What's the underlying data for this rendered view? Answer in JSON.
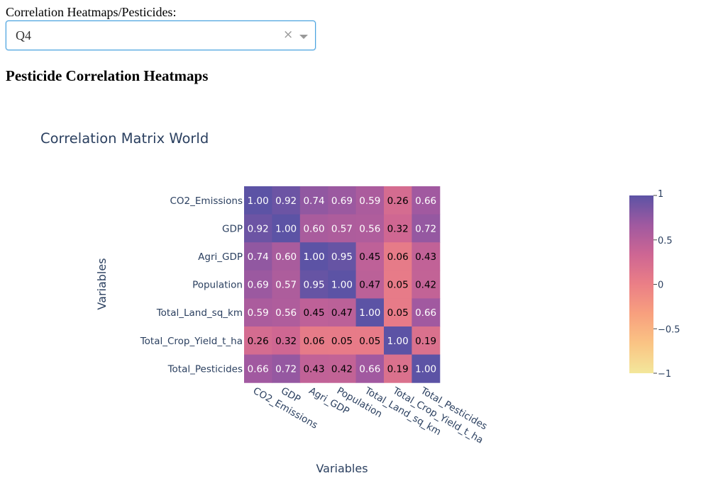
{
  "dropdown": {
    "label": "Correlation Heatmaps/Pesticides:",
    "value": "Q4",
    "clear_symbol": "×"
  },
  "heading": "Pesticide Correlation Heatmaps",
  "chart_data": {
    "type": "heatmap",
    "title": "Correlation Matrix World",
    "xlabel": "Variables",
    "ylabel": "Variables",
    "x": [
      "CO2_Emissions",
      "GDP",
      "Agri_GDP",
      "Population",
      "Total_Land_sq_km",
      "Total_Crop_Yield_t_ha",
      "Total_Pesticides"
    ],
    "y": [
      "CO2_Emissions",
      "GDP",
      "Agri_GDP",
      "Population",
      "Total_Land_sq_km",
      "Total_Crop_Yield_t_ha",
      "Total_Pesticides"
    ],
    "z": [
      [
        1.0,
        0.92,
        0.74,
        0.69,
        0.59,
        0.26,
        0.66
      ],
      [
        0.92,
        1.0,
        0.6,
        0.57,
        0.56,
        0.32,
        0.72
      ],
      [
        0.74,
        0.6,
        1.0,
        0.95,
        0.45,
        0.06,
        0.43
      ],
      [
        0.69,
        0.57,
        0.95,
        1.0,
        0.47,
        0.05,
        0.42
      ],
      [
        0.59,
        0.56,
        0.45,
        0.47,
        1.0,
        0.05,
        0.66
      ],
      [
        0.26,
        0.32,
        0.06,
        0.05,
        0.05,
        1.0,
        0.19
      ],
      [
        0.66,
        0.72,
        0.43,
        0.42,
        0.66,
        0.19,
        1.0
      ]
    ],
    "zmin": -1,
    "zmax": 1,
    "colorscale": [
      "#f3e79b",
      "#fac484",
      "#f8a07e",
      "#eb7f86",
      "#ce6693",
      "#a059a0",
      "#5c53a5"
    ],
    "colorbar": {
      "ticks": [
        1,
        0.5,
        0,
        -0.5,
        -1
      ],
      "tick_labels": [
        "1",
        "0.5",
        "0",
        "−0.5",
        "−1"
      ]
    }
  }
}
